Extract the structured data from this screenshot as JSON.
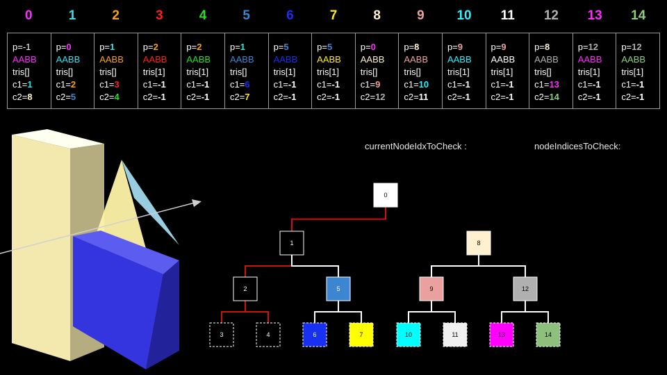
{
  "headers": [
    {
      "label": "0",
      "color": "#ff2bff"
    },
    {
      "label": "1",
      "color": "#35e0ea"
    },
    {
      "label": "2",
      "color": "#f6a21b"
    },
    {
      "label": "3",
      "color": "#ff2020"
    },
    {
      "label": "4",
      "color": "#25e21e"
    },
    {
      "label": "5",
      "color": "#3c85d1"
    },
    {
      "label": "6",
      "color": "#1830f0"
    },
    {
      "label": "7",
      "color": "#ffea1e"
    },
    {
      "label": "8",
      "color": "#fff1d0"
    },
    {
      "label": "9",
      "color": "#eba0a0"
    },
    {
      "label": "10",
      "color": "#2ff0ff"
    },
    {
      "label": "11",
      "color": "#ffffff"
    },
    {
      "label": "12",
      "color": "#b0b0b0"
    },
    {
      "label": "13",
      "color": "#ff2bff"
    },
    {
      "label": "14",
      "color": "#8fcf7c"
    }
  ],
  "nodes": [
    {
      "p": "-1",
      "aabb_color": "#ff2bff",
      "tris": "tris[]",
      "c1": "1",
      "c1_color": "#35e0ea",
      "c2": "8",
      "c2_color": "#fff1d0"
    },
    {
      "p": "0",
      "p_color": "#ff2bff",
      "aabb_color": "#35e0ea",
      "tris": "tris[]",
      "c1": "2",
      "c1_color": "#f6a21b",
      "c2": "5",
      "c2_color": "#3c85d1"
    },
    {
      "p": "1",
      "p_color": "#35e0ea",
      "aabb_color": "#f6a21b",
      "tris": "tris[]",
      "c1": "3",
      "c1_color": "#ff2020",
      "c2": "4",
      "c2_color": "#25e21e"
    },
    {
      "p": "2",
      "p_color": "#f6a21b",
      "aabb_color": "#ff2020",
      "tris": "tris[1]",
      "c1": "-1",
      "c2": "-1"
    },
    {
      "p": "2",
      "p_color": "#f6a21b",
      "aabb_color": "#25e21e",
      "tris": "tris[1]",
      "c1": "-1",
      "c2": "-1"
    },
    {
      "p": "1",
      "p_color": "#35e0ea",
      "aabb_color": "#3c85d1",
      "tris": "tris[]",
      "c1": "6",
      "c1_color": "#1830f0",
      "c2": "7",
      "c2_color": "#ffea1e"
    },
    {
      "p": "5",
      "p_color": "#3c85d1",
      "aabb_color": "#1830f0",
      "tris": "tris[1]",
      "c1": "-1",
      "c2": "-1"
    },
    {
      "p": "5",
      "p_color": "#3c85d1",
      "aabb_color": "#ffea1e",
      "tris": "tris[1]",
      "c1": "-1",
      "c2": "-1"
    },
    {
      "p": "0",
      "p_color": "#ff2bff",
      "aabb_color": "#fff1d0",
      "tris": "tris[]",
      "c1": "9",
      "c1_color": "#eba0a0",
      "c2": "12",
      "c2_color": "#b0b0b0"
    },
    {
      "p": "8",
      "p_color": "#fff1d0",
      "aabb_color": "#eba0a0",
      "tris": "tris[]",
      "c1": "10",
      "c1_color": "#2ff0ff",
      "c2": "11",
      "c2_color": "#ffffff"
    },
    {
      "p": "9",
      "p_color": "#eba0a0",
      "aabb_color": "#2ff0ff",
      "tris": "tris[1]",
      "c1": "-1",
      "c2": "-1"
    },
    {
      "p": "9",
      "p_color": "#eba0a0",
      "aabb_color": "#ffffff",
      "tris": "tris[1]",
      "c1": "-1",
      "c2": "-1"
    },
    {
      "p": "8",
      "p_color": "#fff1d0",
      "aabb_color": "#b0b0b0",
      "tris": "tris[]",
      "c1": "13",
      "c1_color": "#ff2bff",
      "c2": "14",
      "c2_color": "#8fcf7c"
    },
    {
      "p": "12",
      "p_color": "#b0b0b0",
      "aabb_color": "#ff2bff",
      "tris": "tris[1]",
      "c1": "-1",
      "c2": "-1"
    },
    {
      "p": "12",
      "p_color": "#b0b0b0",
      "aabb_color": "#8fcf7c",
      "tris": "tris[1]",
      "c1": "-1",
      "c2": "-1"
    }
  ],
  "labels": {
    "current": "currentNodeIdxToCheck :",
    "indices": "nodeIndicesToCheck:"
  },
  "tree": {
    "nodes": [
      {
        "id": "0",
        "fill": "#ffffff",
        "dashed": false
      },
      {
        "id": "1",
        "fill": "#000000",
        "dashed": false
      },
      {
        "id": "2",
        "fill": "#000000",
        "dashed": false
      },
      {
        "id": "3",
        "fill": "#000000",
        "dashed": true
      },
      {
        "id": "4",
        "fill": "#000000",
        "dashed": true
      },
      {
        "id": "5",
        "fill": "#3c85d1",
        "dashed": false
      },
      {
        "id": "6",
        "fill": "#1830f0",
        "dashed": true
      },
      {
        "id": "7",
        "fill": "#ffff00",
        "dashed": true
      },
      {
        "id": "8",
        "fill": "#fff1d0",
        "dashed": false
      },
      {
        "id": "9",
        "fill": "#eba0a0",
        "dashed": false
      },
      {
        "id": "10",
        "fill": "#00ffff",
        "dashed": true
      },
      {
        "id": "11",
        "fill": "#f0f0f0",
        "dashed": true
      },
      {
        "id": "12",
        "fill": "#b0b0b0",
        "dashed": false
      },
      {
        "id": "13",
        "fill": "#ff00ff",
        "dashed": true
      },
      {
        "id": "14",
        "fill": "#8fbf7c",
        "dashed": true
      }
    ],
    "edge_colors": {
      "path": "#cc1111",
      "normal": "#ffffff"
    },
    "path_edges": [
      [
        "0",
        "1"
      ],
      [
        "1",
        "2"
      ],
      [
        "2",
        "3"
      ],
      [
        "2",
        "4"
      ]
    ]
  },
  "colors": {
    "box_front": "#f3e9ae",
    "box_side": "#b5ad80",
    "box_top": "#fffff0",
    "tri_yellow": "#fff3a8",
    "tri_cyan": "#a8e4f7",
    "blue_front": "#3535e0",
    "blue_side": "#22229a",
    "blue_top": "#5c5cf0",
    "ray": "#d0d0d0"
  }
}
